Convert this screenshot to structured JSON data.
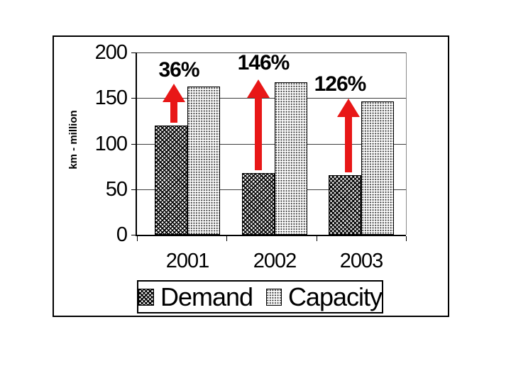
{
  "chart_data": {
    "type": "bar",
    "title": "",
    "xlabel": "",
    "ylabel": "km - million",
    "categories": [
      "2001",
      "2002",
      "2003"
    ],
    "series": [
      {
        "name": "Demand",
        "values": [
          120,
          68,
          65
        ],
        "pattern": "dark-crosshatch"
      },
      {
        "name": "Capacity",
        "values": [
          163,
          167,
          146
        ],
        "pattern": "light-dots"
      }
    ],
    "annotations": [
      {
        "category": "2001",
        "label": "36%",
        "x": 252,
        "y": 82
      },
      {
        "category": "2002",
        "label": "146%",
        "x": 371,
        "y": 72
      },
      {
        "category": "2003",
        "label": "126%",
        "x": 479,
        "y": 102
      }
    ],
    "ylim": [
      0,
      200
    ],
    "yticks": [
      0,
      50,
      100,
      150,
      200
    ],
    "grid": true,
    "legend_position": "bottom-inside",
    "arrow_color": "#e81717"
  },
  "legend": {
    "items": [
      {
        "label": "Demand",
        "swatch": "dark-crosshatch"
      },
      {
        "label": "Capacity",
        "swatch": "light-dots"
      }
    ]
  }
}
